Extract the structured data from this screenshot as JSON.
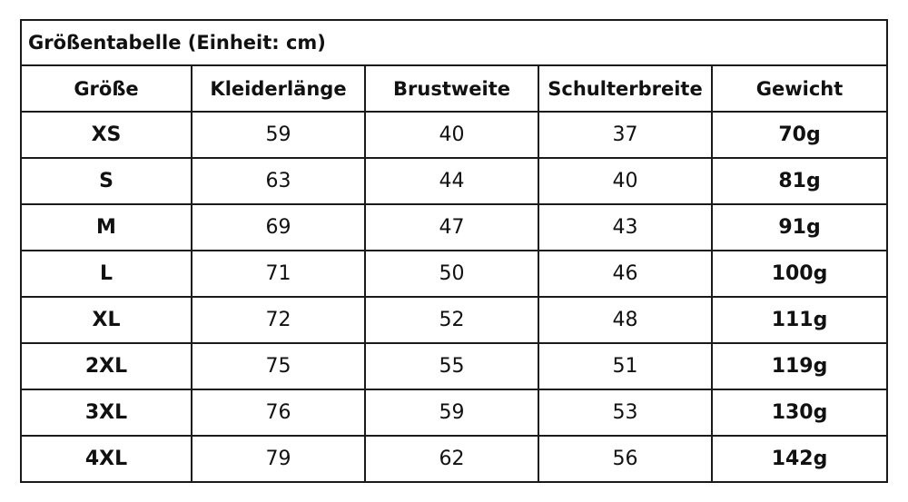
{
  "table": {
    "title": "Größentabelle (Einheit: cm)",
    "headers": [
      "Größe",
      "Kleiderlänge",
      "Brustweite",
      "Schulterbreite",
      "Gewicht"
    ],
    "rows": [
      [
        "XS",
        "59",
        "40",
        "37",
        "70g"
      ],
      [
        "S",
        "63",
        "44",
        "40",
        "81g"
      ],
      [
        "M",
        "69",
        "47",
        "43",
        "91g"
      ],
      [
        "L",
        "71",
        "50",
        "46",
        "100g"
      ],
      [
        "XL",
        "72",
        "52",
        "48",
        "111g"
      ],
      [
        "2XL",
        "75",
        "55",
        "51",
        "119g"
      ],
      [
        "3XL",
        "76",
        "59",
        "53",
        "130g"
      ],
      [
        "4XL",
        "79",
        "62",
        "56",
        "142g"
      ]
    ]
  }
}
